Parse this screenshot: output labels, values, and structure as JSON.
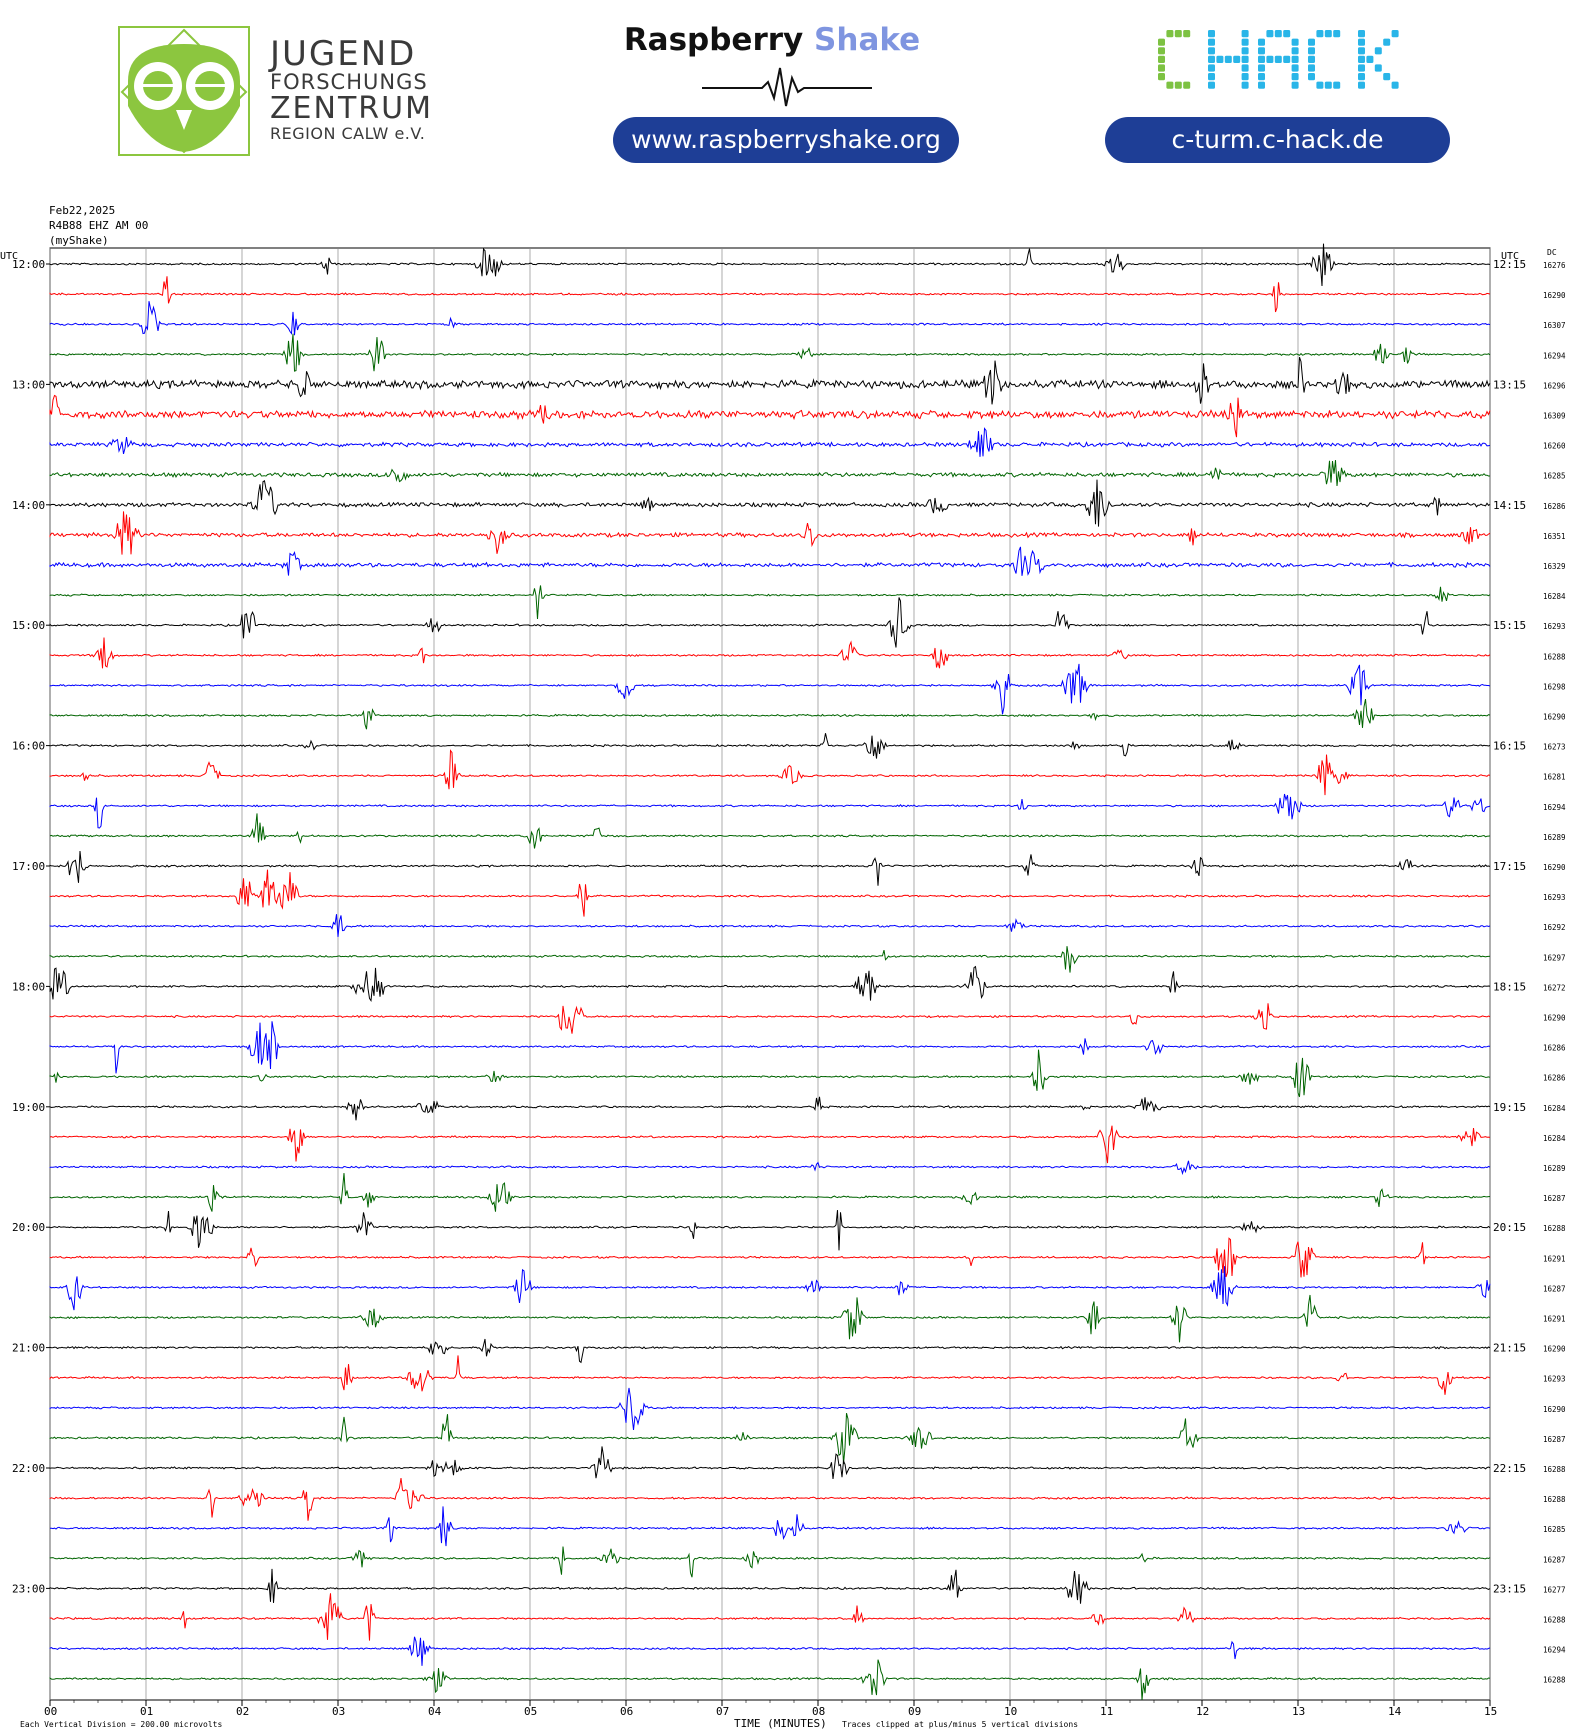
{
  "header": {
    "jfz_lines": [
      "JUGEND",
      "FORSCHUNGS",
      "ZENTRUM",
      "REGION CALW e.V."
    ],
    "rs_brand_dark": "Raspberry",
    "rs_brand_light": "Shake",
    "rs_url": "www.raspberryshake.org",
    "chack_logo_text": "CHACK",
    "chack_url": "c-turm.c-hack.de",
    "colors": {
      "jfz_green": "#8cc63f",
      "pill_blue": "#1e3e96",
      "shake_blue": "#7f95e0",
      "chack_green": "#7dc242",
      "chack_cyan": "#29b5e8"
    }
  },
  "plot_meta": {
    "date": "Feb22,2025",
    "station": "R4B88 EHZ AM 00",
    "source": "(myShake)"
  },
  "chart_data": {
    "type": "helicorder",
    "left_axis_title": "UTC",
    "right_axis_title": "UTC",
    "dc_title": "DC",
    "x_axis_title": "TIME (MINUTES)",
    "x_ticks": [
      "00",
      "01",
      "02",
      "03",
      "04",
      "05",
      "06",
      "07",
      "08",
      "09",
      "10",
      "11",
      "12",
      "13",
      "14",
      "15"
    ],
    "x_range_minutes": [
      0,
      15
    ],
    "division_note": "Each Vertical Division =  200.00 microvolts",
    "clip_note": "Traces clipped at plus/minus 5 vertical divisions",
    "trace_colors": [
      "#000000",
      "#ff0000",
      "#0000ff",
      "#006400"
    ],
    "left_hour_labels": [
      "12:00",
      "13:00",
      "14:00",
      "15:00",
      "16:00",
      "17:00",
      "18:00",
      "19:00",
      "20:00",
      "21:00",
      "22:00",
      "23:00"
    ],
    "right_labels": [
      "12:15",
      "13:15",
      "14:15",
      "15:15",
      "16:15",
      "17:15",
      "18:15",
      "19:15",
      "20:15",
      "21:15",
      "22:15",
      "23:15"
    ],
    "dc_values": [
      "16276",
      "16290",
      "16307",
      "16294",
      "16296",
      "16309",
      "16260",
      "16285",
      "16286",
      "16351",
      "16329",
      "16284",
      "16293",
      "16288",
      "16298",
      "16290",
      "16273",
      "16281",
      "16294",
      "16289",
      "16290",
      "16293",
      "16292",
      "16297",
      "16272",
      "16290",
      "16286",
      "16286",
      "16284",
      "16284",
      "16289",
      "16287",
      "16288",
      "16291",
      "16287",
      "16291",
      "16290",
      "16293",
      "16290",
      "16287",
      "16288",
      "16288",
      "16285",
      "16287",
      "16277",
      "16288",
      "16294",
      "16288"
    ],
    "trace_noise_level": [
      1,
      1,
      1,
      1,
      3,
      3,
      2,
      2,
      2,
      2,
      2,
      1,
      1,
      1,
      1,
      1,
      1,
      1,
      1,
      1,
      1,
      1,
      1,
      1,
      1,
      1,
      1,
      1,
      1,
      1,
      1,
      1,
      1,
      1,
      1,
      1,
      1,
      1,
      1,
      1,
      1,
      1,
      1,
      1,
      1,
      1,
      1,
      1
    ]
  }
}
